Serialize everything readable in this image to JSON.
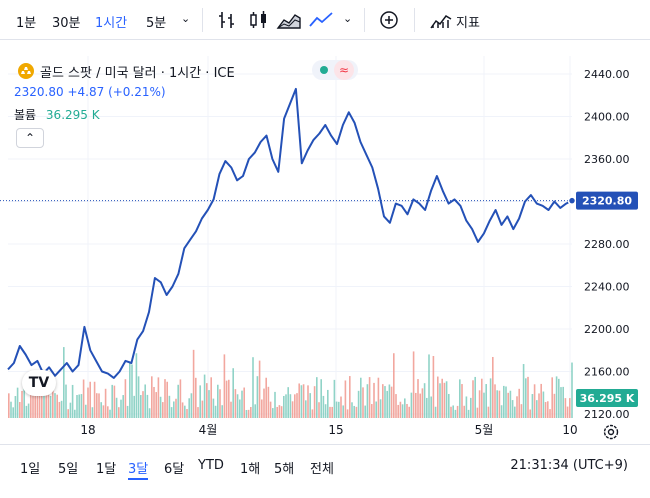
{
  "toolbar": {
    "intervals": [
      "1분",
      "30분",
      "1시간",
      "5분"
    ],
    "active_interval": "1시간",
    "indicators_label": "지표",
    "icons": [
      "bar-chart-icon",
      "candles-icon",
      "area-icon",
      "line-icon",
      "chevron-down-icon",
      "add-compare-icon",
      "indicators-icon"
    ]
  },
  "symbol": {
    "title": "골드 스팟 / 미국 달러 · 1시간 · ICE",
    "price": "2320.80",
    "change": "+4.87",
    "change_pct": "(+0.21%)",
    "volume_label": "볼륨",
    "volume_value": "36.295 K",
    "collapse_icon": "chevron-up-icon"
  },
  "chart_data": {
    "type": "line",
    "series": [
      {
        "values": [
          2162,
          2168,
          2184,
          2176,
          2166,
          2170,
          2158,
          2164,
          2156,
          2162,
          2168,
          2160,
          2166,
          2202,
          2180,
          2170,
          2160,
          2158,
          2154,
          2160,
          2170,
          2168,
          2190,
          2198,
          2216,
          2248,
          2244,
          2232,
          2240,
          2252,
          2276,
          2284,
          2292,
          2304,
          2312,
          2322,
          2346,
          2358,
          2352,
          2340,
          2344,
          2360,
          2366,
          2376,
          2382,
          2360,
          2348,
          2398,
          2412,
          2426,
          2356,
          2368,
          2378,
          2384,
          2392,
          2382,
          2374,
          2392,
          2404,
          2394,
          2376,
          2364,
          2352,
          2332,
          2306,
          2300,
          2318,
          2316,
          2308,
          2322,
          2318,
          2312,
          2330,
          2344,
          2330,
          2318,
          2322,
          2316,
          2302,
          2294,
          2282,
          2290,
          2302,
          2312,
          2298,
          2306,
          2294,
          2304,
          2320,
          2326,
          2318,
          2316,
          2312,
          2320,
          2314,
          2318,
          2320.8
        ]
      }
    ],
    "x_tick_labels": [
      "18",
      "4월",
      "15",
      "5월",
      "10"
    ],
    "y_tick_labels": [
      "2120.00",
      "2160.00",
      "2200.00",
      "2240.00",
      "2280.00",
      "2320.00",
      "2360.00",
      "2400.00",
      "2440.00"
    ],
    "ylim": [
      2120,
      2440
    ],
    "last_price_label": "2320.80",
    "volume_axis_label": "36.295 K",
    "volume_colors": {
      "up": "#7ccbbd",
      "down": "#f0988e"
    },
    "line_color": "#2451b7",
    "grid": true
  },
  "ranges": [
    "1일",
    "5일",
    "1달",
    "3달",
    "6달",
    "YTD",
    "1해",
    "5해",
    "전체"
  ],
  "active_range": "3달",
  "clock": "21:31:34 (UTC+9)",
  "logo": "TV"
}
